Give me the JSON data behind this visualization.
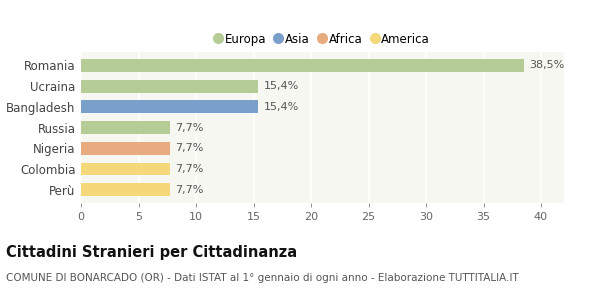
{
  "categories": [
    "Romania",
    "Ucraina",
    "Bangladesh",
    "Russia",
    "Nigeria",
    "Colombia",
    "Perù"
  ],
  "values": [
    38.5,
    15.4,
    15.4,
    7.7,
    7.7,
    7.7,
    7.7
  ],
  "labels": [
    "38,5%",
    "15,4%",
    "15,4%",
    "7,7%",
    "7,7%",
    "7,7%",
    "7,7%"
  ],
  "colors": [
    "#b5cc96",
    "#b5cc96",
    "#7b9fcb",
    "#b5cc96",
    "#e8ab80",
    "#f5d87a",
    "#f5d87a"
  ],
  "legend_labels": [
    "Europa",
    "Asia",
    "Africa",
    "America"
  ],
  "legend_colors": [
    "#b5cc96",
    "#7b9fcb",
    "#e8ab80",
    "#f5d87a"
  ],
  "xlim": [
    0,
    42
  ],
  "xticks": [
    0,
    5,
    10,
    15,
    20,
    25,
    30,
    35,
    40
  ],
  "title": "Cittadini Stranieri per Cittadinanza",
  "subtitle": "COMUNE DI BONARCADO (OR) - Dati ISTAT al 1° gennaio di ogni anno - Elaborazione TUTTITALIA.IT",
  "bg_color": "#ffffff",
  "plot_bg_color": "#f7f7f2",
  "grid_color": "#ffffff",
  "bar_height": 0.62,
  "label_fontsize": 8,
  "title_fontsize": 10.5,
  "subtitle_fontsize": 7.5,
  "ytick_fontsize": 8.5,
  "xtick_fontsize": 8
}
